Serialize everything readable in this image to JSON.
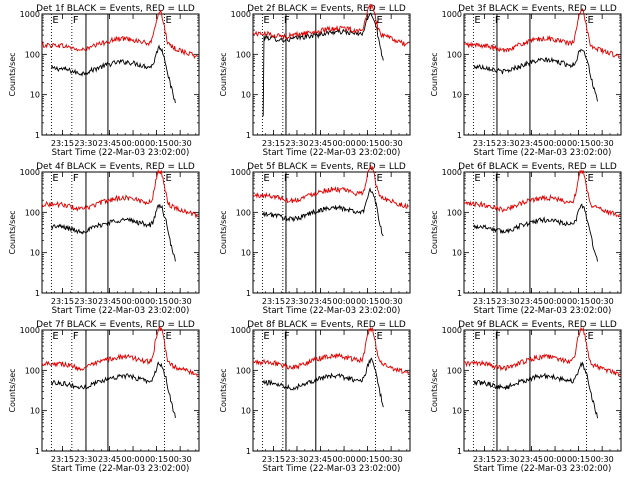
{
  "figure": {
    "xlabel": "Start Time (22-Mar-03 23:02:00)",
    "ylabel": "Counts/sec"
  },
  "chart_data": [
    {
      "type": "line",
      "title": "Det 1f BLACK = Events, RED = LLD",
      "ylog": true,
      "ylim": [
        1,
        1000
      ],
      "xlim_minutes": [
        0,
        100
      ],
      "x_ticks": [
        "23:15",
        "23:30",
        "23:45",
        "00:00",
        "00:15",
        "00:30"
      ],
      "y_ticks": [
        "1",
        "10",
        "100",
        "1000"
      ],
      "markers": [
        {
          "label": "E",
          "at": "23:08",
          "style": "dotted"
        },
        {
          "label": "F",
          "at": "23:21",
          "style": "dotted"
        },
        {
          "label": "",
          "at": "23:30",
          "style": "solid"
        },
        {
          "label": "",
          "at": "23:44",
          "style": "solid"
        },
        {
          "label": "E",
          "at": "00:20",
          "style": "dotted"
        }
      ],
      "series": [
        {
          "name": "Events",
          "color": "#000000",
          "profile": "A",
          "baseline": 45,
          "start": "23:08",
          "end": "00:27",
          "peak": 150
        },
        {
          "name": "LLD",
          "color": "#e00000",
          "profile": "A",
          "baseline": 170,
          "start": "23:02",
          "end": "00:41",
          "peak": 1100
        }
      ]
    },
    {
      "type": "line",
      "title": "Det 2f BLACK = Events, RED = LLD",
      "ylog": true,
      "ylim": [
        1,
        1000
      ],
      "xlim_minutes": [
        0,
        100
      ],
      "x_ticks": [
        "23:15",
        "23:30",
        "23:45",
        "00:00",
        "00:15",
        "00:30"
      ],
      "y_ticks": [
        "1",
        "10",
        "100",
        "1000"
      ],
      "markers": [
        {
          "label": "E",
          "at": "23:08",
          "style": "dotted"
        },
        {
          "label": "F",
          "at": "23:21",
          "style": "dotted"
        },
        {
          "label": "",
          "at": "23:23",
          "style": "solid"
        },
        {
          "label": "",
          "at": "23:42",
          "style": "solid"
        },
        {
          "label": "E",
          "at": "00:20",
          "style": "dotted"
        }
      ],
      "series": [
        {
          "name": "Events",
          "color": "#000000",
          "profile": "B",
          "baseline": 270,
          "start": "23:08",
          "end": "00:25",
          "peak": 1000
        },
        {
          "name": "LLD",
          "color": "#e00000",
          "profile": "B",
          "baseline": 330,
          "start": "23:02",
          "end": "00:41",
          "peak": 1500
        }
      ]
    },
    {
      "type": "line",
      "title": "Det 3f BLACK = Events, RED = LLD",
      "ylog": true,
      "ylim": [
        1,
        1000
      ],
      "xlim_minutes": [
        0,
        100
      ],
      "x_ticks": [
        "23:15",
        "23:30",
        "23:45",
        "00:00",
        "00:15",
        "00:30"
      ],
      "y_ticks": [
        "1",
        "10",
        "100",
        "1000"
      ],
      "markers": [
        {
          "label": "E",
          "at": "23:08",
          "style": "dotted"
        },
        {
          "label": "F",
          "at": "23:21",
          "style": "dotted"
        },
        {
          "label": "",
          "at": "23:23",
          "style": "solid"
        },
        {
          "label": "",
          "at": "23:44",
          "style": "solid"
        },
        {
          "label": "E",
          "at": "00:20",
          "style": "dotted"
        }
      ],
      "series": [
        {
          "name": "Events",
          "color": "#000000",
          "profile": "A",
          "baseline": 50,
          "start": "23:08",
          "end": "00:27",
          "peak": 140
        },
        {
          "name": "LLD",
          "color": "#e00000",
          "profile": "A",
          "baseline": 170,
          "start": "23:02",
          "end": "00:41",
          "peak": 1200
        }
      ]
    },
    {
      "type": "line",
      "title": "Det 4f BLACK = Events, RED = LLD",
      "ylog": true,
      "ylim": [
        1,
        1000
      ],
      "xlim_minutes": [
        0,
        100
      ],
      "x_ticks": [
        "23:15",
        "23:30",
        "23:45",
        "00:00",
        "00:15",
        "00:30"
      ],
      "y_ticks": [
        "1",
        "10",
        "100",
        "1000"
      ],
      "markers": [
        {
          "label": "E",
          "at": "23:08",
          "style": "dotted"
        },
        {
          "label": "F",
          "at": "23:21",
          "style": "dotted"
        },
        {
          "label": "",
          "at": "23:30",
          "style": "solid"
        },
        {
          "label": "",
          "at": "23:44",
          "style": "solid"
        },
        {
          "label": "E",
          "at": "00:20",
          "style": "dotted"
        }
      ],
      "series": [
        {
          "name": "Events",
          "color": "#000000",
          "profile": "A",
          "baseline": 45,
          "start": "23:08",
          "end": "00:27",
          "peak": 150
        },
        {
          "name": "LLD",
          "color": "#e00000",
          "profile": "A",
          "baseline": 160,
          "start": "23:02",
          "end": "00:41",
          "peak": 1100
        }
      ]
    },
    {
      "type": "line",
      "title": "Det 5f BLACK = Events, RED = LLD",
      "ylog": true,
      "ylim": [
        1,
        1000
      ],
      "xlim_minutes": [
        0,
        100
      ],
      "x_ticks": [
        "23:15",
        "23:30",
        "23:45",
        "00:00",
        "00:15",
        "00:30"
      ],
      "y_ticks": [
        "1",
        "10",
        "100",
        "1000"
      ],
      "markers": [
        {
          "label": "E",
          "at": "23:08",
          "style": "dotted"
        },
        {
          "label": "F",
          "at": "23:21",
          "style": "dotted"
        },
        {
          "label": "",
          "at": "23:23",
          "style": "solid"
        },
        {
          "label": "",
          "at": "23:42",
          "style": "solid"
        },
        {
          "label": "E",
          "at": "00:20",
          "style": "dotted"
        }
      ],
      "series": [
        {
          "name": "Events",
          "color": "#000000",
          "profile": "A",
          "baseline": 90,
          "start": "23:08",
          "end": "00:25",
          "peak": 360
        },
        {
          "name": "LLD",
          "color": "#e00000",
          "profile": "A",
          "baseline": 260,
          "start": "23:02",
          "end": "00:41",
          "peak": 1300
        }
      ]
    },
    {
      "type": "line",
      "title": "Det 6f BLACK = Events, RED = LLD",
      "ylog": true,
      "ylim": [
        1,
        1000
      ],
      "xlim_minutes": [
        0,
        100
      ],
      "x_ticks": [
        "23:15",
        "23:30",
        "23:45",
        "00:00",
        "00:15",
        "00:30"
      ],
      "y_ticks": [
        "1",
        "10",
        "100",
        "1000"
      ],
      "markers": [
        {
          "label": "E",
          "at": "23:08",
          "style": "dotted"
        },
        {
          "label": "F",
          "at": "23:21",
          "style": "dotted"
        },
        {
          "label": "",
          "at": "23:23",
          "style": "solid"
        },
        {
          "label": "",
          "at": "23:44",
          "style": "solid"
        },
        {
          "label": "E",
          "at": "00:20",
          "style": "dotted"
        }
      ],
      "series": [
        {
          "name": "Events",
          "color": "#000000",
          "profile": "A",
          "baseline": 45,
          "start": "23:08",
          "end": "00:27",
          "peak": 150
        },
        {
          "name": "LLD",
          "color": "#e00000",
          "profile": "A",
          "baseline": 160,
          "start": "23:02",
          "end": "00:41",
          "peak": 1100
        }
      ]
    },
    {
      "type": "line",
      "title": "Det 7f BLACK = Events, RED = LLD",
      "ylog": true,
      "ylim": [
        1,
        1000
      ],
      "xlim_minutes": [
        0,
        100
      ],
      "x_ticks": [
        "23:15",
        "23:30",
        "23:45",
        "00:00",
        "00:15",
        "00:30"
      ],
      "y_ticks": [
        "1",
        "10",
        "100",
        "1000"
      ],
      "markers": [
        {
          "label": "E",
          "at": "23:08",
          "style": "dotted"
        },
        {
          "label": "F",
          "at": "23:21",
          "style": "dotted"
        },
        {
          "label": "",
          "at": "23:30",
          "style": "solid"
        },
        {
          "label": "",
          "at": "23:44",
          "style": "solid"
        },
        {
          "label": "E",
          "at": "00:20",
          "style": "dotted"
        }
      ],
      "series": [
        {
          "name": "Events",
          "color": "#000000",
          "profile": "A",
          "baseline": 50,
          "start": "23:08",
          "end": "00:27",
          "peak": 150
        },
        {
          "name": "LLD",
          "color": "#e00000",
          "profile": "A",
          "baseline": 150,
          "start": "23:02",
          "end": "00:41",
          "peak": 1100
        }
      ]
    },
    {
      "type": "line",
      "title": "Det 8f BLACK = Events, RED = LLD",
      "ylog": true,
      "ylim": [
        1,
        1000
      ],
      "xlim_minutes": [
        0,
        100
      ],
      "x_ticks": [
        "23:15",
        "23:30",
        "23:45",
        "00:00",
        "00:15",
        "00:30"
      ],
      "y_ticks": [
        "1",
        "10",
        "100",
        "1000"
      ],
      "markers": [
        {
          "label": "E",
          "at": "23:08",
          "style": "dotted"
        },
        {
          "label": "F",
          "at": "23:21",
          "style": "dotted"
        },
        {
          "label": "",
          "at": "23:23",
          "style": "solid"
        },
        {
          "label": "",
          "at": "23:42",
          "style": "solid"
        },
        {
          "label": "E",
          "at": "00:20",
          "style": "dotted"
        }
      ],
      "series": [
        {
          "name": "Events",
          "color": "#000000",
          "profile": "A",
          "baseline": 50,
          "start": "23:08",
          "end": "00:25",
          "peak": 180
        },
        {
          "name": "LLD",
          "color": "#e00000",
          "profile": "A",
          "baseline": 160,
          "start": "23:02",
          "end": "00:41",
          "peak": 1100
        }
      ]
    },
    {
      "type": "line",
      "title": "Det 9f BLACK = Events, RED = LLD",
      "ylog": true,
      "ylim": [
        1,
        1000
      ],
      "xlim_minutes": [
        0,
        100
      ],
      "x_ticks": [
        "23:15",
        "23:30",
        "23:45",
        "00:00",
        "00:15",
        "00:30"
      ],
      "y_ticks": [
        "1",
        "10",
        "100",
        "1000"
      ],
      "markers": [
        {
          "label": "E",
          "at": "23:08",
          "style": "dotted"
        },
        {
          "label": "F",
          "at": "23:21",
          "style": "dotted"
        },
        {
          "label": "",
          "at": "23:23",
          "style": "solid"
        },
        {
          "label": "",
          "at": "23:44",
          "style": "solid"
        },
        {
          "label": "E",
          "at": "00:20",
          "style": "dotted"
        }
      ],
      "series": [
        {
          "name": "Events",
          "color": "#000000",
          "profile": "A",
          "baseline": 50,
          "start": "23:08",
          "end": "00:27",
          "peak": 140
        },
        {
          "name": "LLD",
          "color": "#e00000",
          "profile": "A",
          "baseline": 150,
          "start": "23:02",
          "end": "00:41",
          "peak": 1100
        }
      ]
    }
  ]
}
